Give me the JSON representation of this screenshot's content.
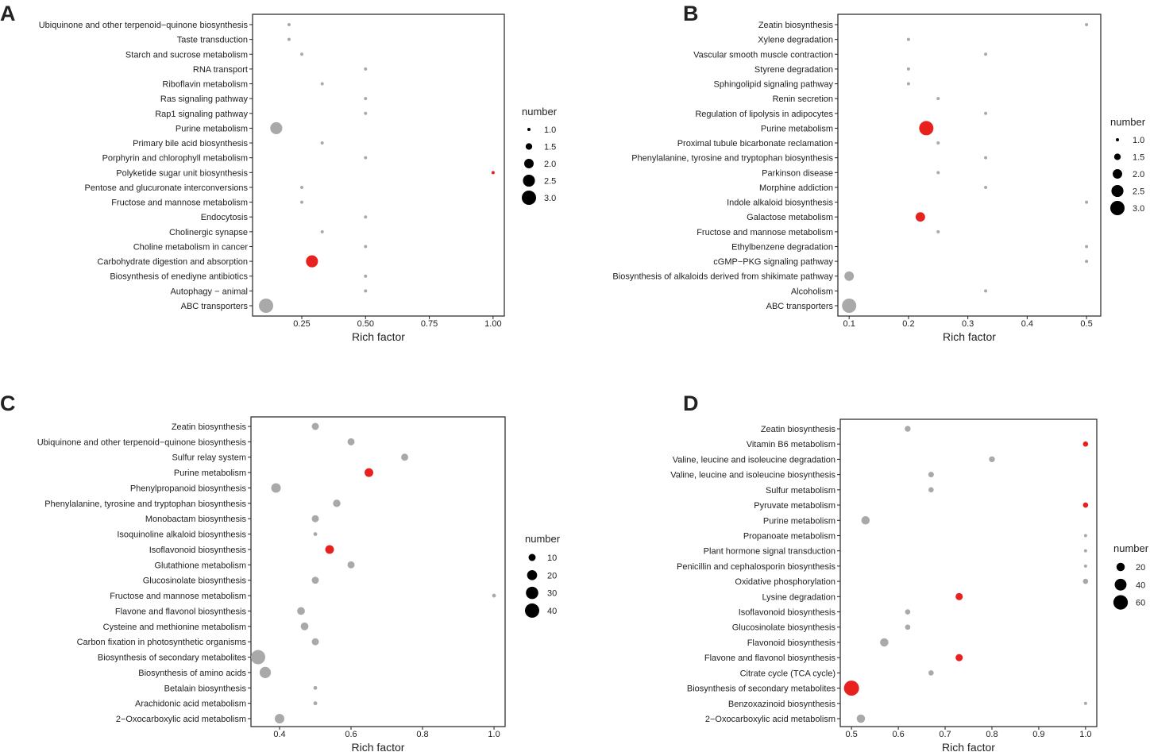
{
  "colors": {
    "significant": "#e8211f",
    "other": "#a9a9a9",
    "legend": "#000000"
  },
  "chart_data": [
    {
      "panel": "A",
      "type": "scatter",
      "xlabel": "Rich factor",
      "ylabel": "",
      "xlim": [
        0.057,
        1.044
      ],
      "xticks": [
        0.25,
        0.5,
        0.75,
        1.0
      ],
      "xtick_labels": [
        "0.25",
        "0.50",
        "0.75",
        "1.00"
      ],
      "size_legend": {
        "title": "number",
        "values": [
          1.0,
          1.5,
          2.0,
          2.5,
          3.0
        ],
        "labels": [
          "1.0",
          "1.5",
          "2.0",
          "2.5",
          "3.0"
        ],
        "placement": "right"
      },
      "points": [
        {
          "term": "Ubiquinone and other terpenoid−quinone biosynthesis",
          "x": 0.2,
          "number": 1,
          "significant": false
        },
        {
          "term": "Taste transduction",
          "x": 0.2,
          "number": 1,
          "significant": false
        },
        {
          "term": "Starch and sucrose metabolism",
          "x": 0.25,
          "number": 1,
          "significant": false
        },
        {
          "term": "RNA transport",
          "x": 0.5,
          "number": 1,
          "significant": false
        },
        {
          "term": "Riboflavin metabolism",
          "x": 0.33,
          "number": 1,
          "significant": false
        },
        {
          "term": "Ras signaling pathway",
          "x": 0.5,
          "number": 1,
          "significant": false
        },
        {
          "term": "Rap1 signaling pathway",
          "x": 0.5,
          "number": 1,
          "significant": false
        },
        {
          "term": "Purine metabolism",
          "x": 0.15,
          "number": 2.5,
          "significant": false
        },
        {
          "term": "Primary bile acid biosynthesis",
          "x": 0.33,
          "number": 1,
          "significant": false
        },
        {
          "term": "Porphyrin and chlorophyll metabolism",
          "x": 0.5,
          "number": 1,
          "significant": false
        },
        {
          "term": "Polyketide sugar unit biosynthesis",
          "x": 1.0,
          "number": 1,
          "significant": true
        },
        {
          "term": "Pentose and glucuronate interconversions",
          "x": 0.25,
          "number": 1,
          "significant": false
        },
        {
          "term": "Fructose and mannose metabolism",
          "x": 0.25,
          "number": 1,
          "significant": false
        },
        {
          "term": "Endocytosis",
          "x": 0.5,
          "number": 1,
          "significant": false
        },
        {
          "term": "Cholinergic synapse",
          "x": 0.33,
          "number": 1,
          "significant": false
        },
        {
          "term": "Choline metabolism in cancer",
          "x": 0.5,
          "number": 1,
          "significant": false
        },
        {
          "term": "Carbohydrate digestion and absorption",
          "x": 0.29,
          "number": 2.5,
          "significant": true
        },
        {
          "term": "Biosynthesis of enediyne antibiotics",
          "x": 0.5,
          "number": 1,
          "significant": false
        },
        {
          "term": "Autophagy − animal",
          "x": 0.5,
          "number": 1,
          "significant": false
        },
        {
          "term": "ABC transporters",
          "x": 0.11,
          "number": 3,
          "significant": false
        }
      ]
    },
    {
      "panel": "B",
      "type": "scatter",
      "xlabel": "Rich factor",
      "ylabel": "",
      "xlim": [
        0.081,
        0.524
      ],
      "xticks": [
        0.1,
        0.2,
        0.3,
        0.4,
        0.5
      ],
      "xtick_labels": [
        "0.1",
        "0.2",
        "0.3",
        "0.4",
        "0.5"
      ],
      "size_legend": {
        "title": "number",
        "values": [
          1.0,
          1.5,
          2.0,
          2.5,
          3.0
        ],
        "labels": [
          "1.0",
          "1.5",
          "2.0",
          "2.5",
          "3.0"
        ],
        "placement": "right"
      },
      "points": [
        {
          "term": "Zeatin biosynthesis",
          "x": 0.5,
          "number": 1,
          "significant": false
        },
        {
          "term": "Xylene degradation",
          "x": 0.2,
          "number": 1,
          "significant": false
        },
        {
          "term": "Vascular smooth muscle contraction",
          "x": 0.33,
          "number": 1,
          "significant": false
        },
        {
          "term": "Styrene degradation",
          "x": 0.2,
          "number": 1,
          "significant": false
        },
        {
          "term": "Sphingolipid signaling pathway",
          "x": 0.2,
          "number": 1,
          "significant": false
        },
        {
          "term": "Renin secretion",
          "x": 0.25,
          "number": 1,
          "significant": false
        },
        {
          "term": "Regulation of lipolysis in adipocytes",
          "x": 0.33,
          "number": 1,
          "significant": false
        },
        {
          "term": "Purine metabolism",
          "x": 0.23,
          "number": 3,
          "significant": true
        },
        {
          "term": "Proximal tubule bicarbonate reclamation",
          "x": 0.25,
          "number": 1,
          "significant": false
        },
        {
          "term": "Phenylalanine, tyrosine and tryptophan biosynthesis",
          "x": 0.33,
          "number": 1,
          "significant": false
        },
        {
          "term": "Parkinson disease",
          "x": 0.25,
          "number": 1,
          "significant": false
        },
        {
          "term": "Morphine addiction",
          "x": 0.33,
          "number": 1,
          "significant": false
        },
        {
          "term": "Indole alkaloid biosynthesis",
          "x": 0.5,
          "number": 1,
          "significant": false
        },
        {
          "term": "Galactose metabolism",
          "x": 0.22,
          "number": 2,
          "significant": true
        },
        {
          "term": "Fructose and mannose metabolism",
          "x": 0.25,
          "number": 1,
          "significant": false
        },
        {
          "term": "Ethylbenzene degradation",
          "x": 0.5,
          "number": 1,
          "significant": false
        },
        {
          "term": "cGMP−PKG signaling pathway",
          "x": 0.5,
          "number": 1,
          "significant": false
        },
        {
          "term": "Biosynthesis of alkaloids derived from shikimate pathway",
          "x": 0.1,
          "number": 2,
          "significant": false
        },
        {
          "term": "Alcoholism",
          "x": 0.33,
          "number": 1,
          "significant": false
        },
        {
          "term": "ABC transporters",
          "x": 0.1,
          "number": 3,
          "significant": false
        }
      ]
    },
    {
      "panel": "C",
      "type": "scatter",
      "xlabel": "Rich factor",
      "ylabel": "",
      "xlim": [
        0.32,
        1.031
      ],
      "xticks": [
        0.4,
        0.6,
        0.8,
        1.0
      ],
      "xtick_labels": [
        "0.4",
        "0.6",
        "0.8",
        "1.0"
      ],
      "size_legend": {
        "title": "number",
        "values": [
          10,
          20,
          30,
          40
        ],
        "labels": [
          "10",
          "20",
          "30",
          "40"
        ],
        "placement": "right"
      },
      "points": [
        {
          "term": "Zeatin biosynthesis",
          "x": 0.5,
          "number": 10,
          "significant": false
        },
        {
          "term": "Ubiquinone and other terpenoid−quinone biosynthesis",
          "x": 0.6,
          "number": 10,
          "significant": false
        },
        {
          "term": "Sulfur relay system",
          "x": 0.75,
          "number": 10,
          "significant": false
        },
        {
          "term": "Purine metabolism",
          "x": 0.65,
          "number": 15,
          "significant": true
        },
        {
          "term": "Phenylpropanoid biosynthesis",
          "x": 0.39,
          "number": 18,
          "significant": false
        },
        {
          "term": "Phenylalanine, tyrosine and tryptophan biosynthesis",
          "x": 0.56,
          "number": 11,
          "significant": false
        },
        {
          "term": "Monobactam biosynthesis",
          "x": 0.5,
          "number": 10,
          "significant": false
        },
        {
          "term": "Isoquinoline alkaloid biosynthesis",
          "x": 0.5,
          "number": 3,
          "significant": false
        },
        {
          "term": "Isoflavonoid biosynthesis",
          "x": 0.54,
          "number": 15,
          "significant": true
        },
        {
          "term": "Glutathione metabolism",
          "x": 0.6,
          "number": 10,
          "significant": false
        },
        {
          "term": "Glucosinolate biosynthesis",
          "x": 0.5,
          "number": 10,
          "significant": false
        },
        {
          "term": "Fructose and mannose metabolism",
          "x": 1.0,
          "number": 3,
          "significant": false
        },
        {
          "term": "Flavone and flavonol biosynthesis",
          "x": 0.46,
          "number": 12,
          "significant": false
        },
        {
          "term": "Cysteine and methionine metabolism",
          "x": 0.47,
          "number": 12,
          "significant": false
        },
        {
          "term": "Carbon fixation in photosynthetic organisms",
          "x": 0.5,
          "number": 10,
          "significant": false
        },
        {
          "term": "Biosynthesis of secondary metabolites",
          "x": 0.34,
          "number": 40,
          "significant": false
        },
        {
          "term": "Biosynthesis of amino acids",
          "x": 0.36,
          "number": 25,
          "significant": false
        },
        {
          "term": "Betalain biosynthesis",
          "x": 0.5,
          "number": 3,
          "significant": false
        },
        {
          "term": "Arachidonic acid metabolism",
          "x": 0.5,
          "number": 3,
          "significant": false
        },
        {
          "term": "2−Oxocarboxylic acid metabolism",
          "x": 0.4,
          "number": 18,
          "significant": false
        }
      ]
    },
    {
      "panel": "D",
      "type": "scatter",
      "xlabel": "Rich factor",
      "ylabel": "",
      "xlim": [
        0.476,
        1.024
      ],
      "xticks": [
        0.5,
        0.6,
        0.7,
        0.8,
        0.9,
        1.0
      ],
      "xtick_labels": [
        "0.5",
        "0.6",
        "0.7",
        "0.8",
        "0.9",
        "1.0"
      ],
      "size_legend": {
        "title": "number",
        "values": [
          20,
          40,
          60
        ],
        "labels": [
          "20",
          "40",
          "60"
        ],
        "placement": "right"
      },
      "points": [
        {
          "term": "Zeatin biosynthesis",
          "x": 0.62,
          "number": 10,
          "significant": false
        },
        {
          "term": "Vitamin B6 metabolism",
          "x": 1.0,
          "number": 8,
          "significant": true
        },
        {
          "term": "Valine, leucine and isoleucine degradation",
          "x": 0.8,
          "number": 10,
          "significant": false
        },
        {
          "term": "Valine, leucine and isoleucine biosynthesis",
          "x": 0.67,
          "number": 9,
          "significant": false
        },
        {
          "term": "Sulfur metabolism",
          "x": 0.67,
          "number": 8,
          "significant": false
        },
        {
          "term": "Pyruvate metabolism",
          "x": 1.0,
          "number": 8,
          "significant": true
        },
        {
          "term": "Purine metabolism",
          "x": 0.53,
          "number": 20,
          "significant": false
        },
        {
          "term": "Propanoate metabolism",
          "x": 1.0,
          "number": 3,
          "significant": false
        },
        {
          "term": "Plant hormone signal transduction",
          "x": 1.0,
          "number": 3,
          "significant": false
        },
        {
          "term": "Penicillin and cephalosporin biosynthesis",
          "x": 1.0,
          "number": 3,
          "significant": false
        },
        {
          "term": "Oxidative phosphorylation",
          "x": 1.0,
          "number": 8,
          "significant": false
        },
        {
          "term": "Lysine degradation",
          "x": 0.73,
          "number": 15,
          "significant": true
        },
        {
          "term": "Isoflavonoid biosynthesis",
          "x": 0.62,
          "number": 8,
          "significant": false
        },
        {
          "term": "Glucosinolate biosynthesis",
          "x": 0.62,
          "number": 8,
          "significant": false
        },
        {
          "term": "Flavonoid biosynthesis",
          "x": 0.57,
          "number": 20,
          "significant": false
        },
        {
          "term": "Flavone and flavonol biosynthesis",
          "x": 0.73,
          "number": 15,
          "significant": true
        },
        {
          "term": "Citrate cycle (TCA cycle)",
          "x": 0.67,
          "number": 8,
          "significant": false
        },
        {
          "term": "Biosynthesis of secondary metabolites",
          "x": 0.5,
          "number": 65,
          "significant": true
        },
        {
          "term": "Benzoxazinoid biosynthesis",
          "x": 1.0,
          "number": 3,
          "significant": false
        },
        {
          "term": "2−Oxocarboxylic acid metabolism",
          "x": 0.52,
          "number": 20,
          "significant": false
        }
      ]
    }
  ]
}
